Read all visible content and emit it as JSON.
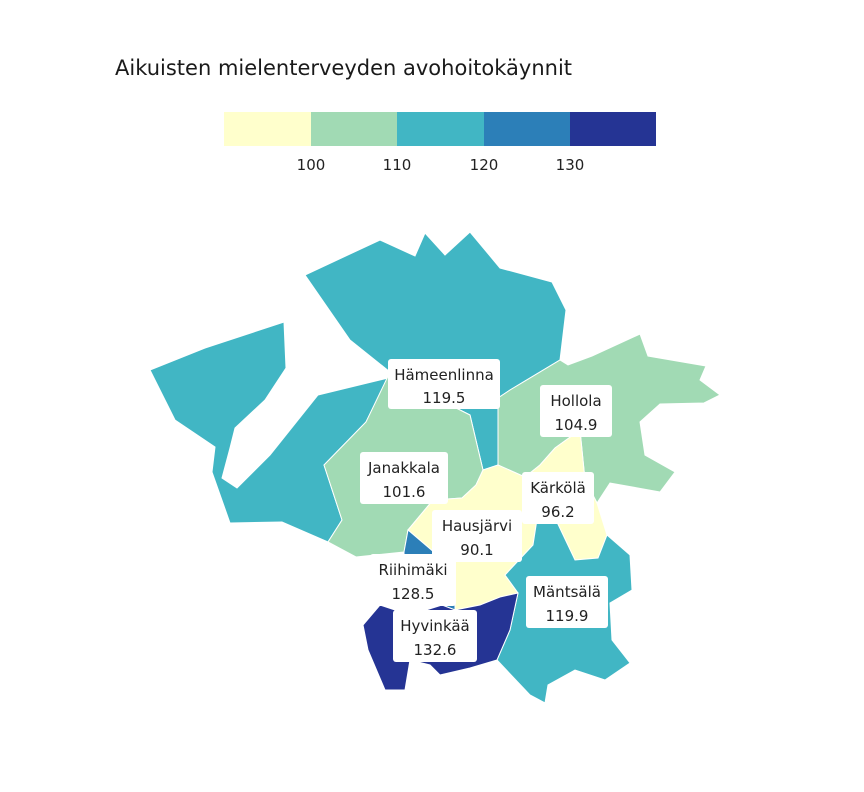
{
  "title": "Aikuisten mielenterveyden avohoitokäynnit",
  "legend": {
    "colors": [
      "#ffffcc",
      "#a1dab4",
      "#41b6c4",
      "#2c7fb8",
      "#253494"
    ],
    "breaks": [
      "100",
      "110",
      "120",
      "130"
    ],
    "thresholds": [
      100,
      110,
      120,
      130
    ]
  },
  "regions": [
    {
      "id": "hameenlinna",
      "name": "Hämeenlinna",
      "value": "119.5",
      "numeric": 119.5
    },
    {
      "id": "hollola",
      "name": "Hollola",
      "value": "104.9",
      "numeric": 104.9
    },
    {
      "id": "janakkala",
      "name": "Janakkala",
      "value": "101.6",
      "numeric": 101.6
    },
    {
      "id": "karkola",
      "name": "Kärkölä",
      "value": "96.2",
      "numeric": 96.2
    },
    {
      "id": "hausjarvi",
      "name": "Hausjärvi",
      "value": "90.1",
      "numeric": 90.1
    },
    {
      "id": "riihimaki",
      "name": "Riihimäki",
      "value": "128.5",
      "numeric": 128.5
    },
    {
      "id": "mantsala",
      "name": "Mäntsälä",
      "value": "119.9",
      "numeric": 119.9
    },
    {
      "id": "hyvinkaa",
      "name": "Hyvinkää",
      "value": "132.6",
      "numeric": 132.6
    }
  ]
}
